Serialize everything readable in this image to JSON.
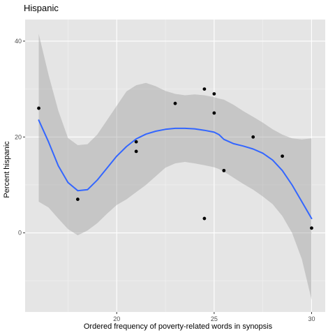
{
  "chart_data": {
    "type": "scatter",
    "title": "Hispanic",
    "xlabel": "Ordered frequency of poverty-related words in synopsis",
    "ylabel": "Percent hispanic",
    "xlim": [
      15.3,
      30.7
    ],
    "ylim": [
      -16.5,
      44.5
    ],
    "x_ticks": [
      20,
      25,
      30
    ],
    "x_tick_labels": [
      "20",
      "25",
      "30"
    ],
    "x_minor_ticks": [
      17.5,
      22.5,
      27.5
    ],
    "y_ticks": [
      0,
      20,
      40
    ],
    "y_tick_labels": [
      "0",
      "20",
      "40"
    ],
    "y_minor_ticks": [
      -10,
      10,
      30
    ],
    "grid": true,
    "legend": "none",
    "points": {
      "x": [
        16,
        18,
        21,
        21,
        23,
        24.5,
        24.5,
        25,
        25,
        25.5,
        27,
        28.5,
        30
      ],
      "y": [
        26,
        7,
        19,
        17,
        27,
        30,
        3,
        29,
        25,
        13,
        20,
        16,
        1
      ]
    },
    "smooth": {
      "x": [
        16,
        16.5,
        17,
        17.5,
        18,
        18.5,
        19,
        19.5,
        20,
        20.5,
        21,
        21.5,
        22,
        22.5,
        23,
        23.5,
        24,
        24.5,
        25,
        25.25,
        25.5,
        26,
        26.5,
        27,
        27.5,
        28,
        28.5,
        29,
        29.5,
        30
      ],
      "y": [
        23.5,
        19,
        14,
        10.5,
        8.8,
        9,
        11,
        13.5,
        16,
        18,
        19.6,
        20.6,
        21.2,
        21.6,
        21.8,
        21.8,
        21.7,
        21.4,
        21,
        20.5,
        19.5,
        18.6,
        18.1,
        17.5,
        16.6,
        15.2,
        13,
        10,
        6.5,
        3
      ],
      "ymin": [
        6.5,
        5.3,
        3,
        0.8,
        -0.5,
        0.5,
        2,
        4,
        5.8,
        7,
        8.5,
        10,
        11.8,
        13.6,
        14.5,
        14.8,
        14.5,
        14.1,
        13.7,
        13.3,
        12.8,
        11.5,
        10.2,
        9,
        7.6,
        6,
        3.5,
        0,
        -5.5,
        -14
      ],
      "ymax": [
        41.5,
        33,
        25.5,
        19.8,
        18.3,
        18.5,
        20.5,
        23.5,
        26.5,
        29.5,
        30.8,
        31.3,
        30.6,
        29.6,
        29,
        28.7,
        28.9,
        28.7,
        28.3,
        28,
        27.8,
        26.7,
        25.4,
        24.2,
        23,
        21.6,
        20.5,
        19.7,
        19.5,
        19.7
      ]
    },
    "colors": {
      "panel_background": "#e5e5e5",
      "grid_major": "#ffffff",
      "grid_minor": "#f2f2f2",
      "points": "#000000",
      "smooth_line": "#3366ff",
      "confidence_band": "#999999"
    }
  }
}
